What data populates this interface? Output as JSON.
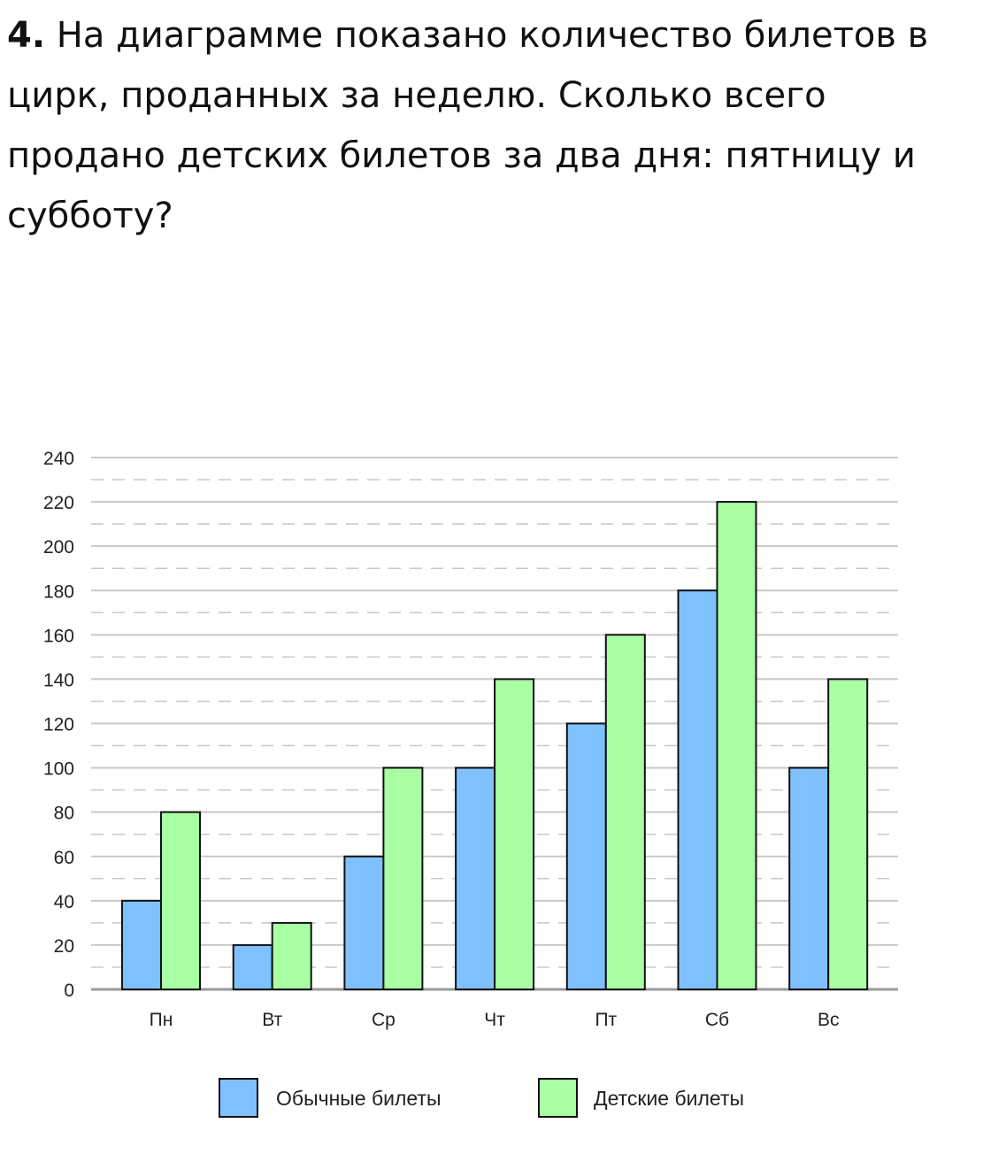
{
  "question": {
    "number": "4.",
    "text": "На диаграмме показано количество билетов в цирк, проданных за неделю. Сколько всего продано детских билетов за два дня: пятницу и субботу?"
  },
  "colors": {
    "regular": "#7fc1ff",
    "children": "#a9ffa3",
    "grid": "#c8c8c8",
    "axis": "#9a9a9a"
  },
  "chart_data": {
    "type": "bar",
    "title": "",
    "xlabel": "",
    "ylabel": "",
    "categories": [
      "Пн",
      "Вт",
      "Ср",
      "Чт",
      "Пт",
      "Сб",
      "Вс"
    ],
    "series": [
      {
        "name": "Обычные билеты",
        "values": [
          40,
          20,
          60,
          100,
          120,
          180,
          100
        ]
      },
      {
        "name": "Детские билеты",
        "values": [
          80,
          30,
          100,
          140,
          160,
          220,
          140
        ]
      }
    ],
    "ylim": [
      0,
      240
    ],
    "yticks": [
      0,
      20,
      40,
      60,
      80,
      100,
      120,
      140,
      160,
      180,
      200,
      220,
      240
    ],
    "grid": true,
    "legend": "bottom"
  }
}
